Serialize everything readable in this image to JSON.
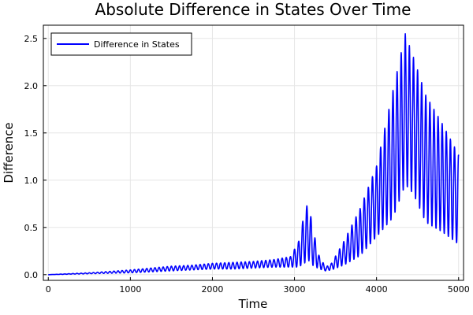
{
  "chart_data": {
    "type": "line",
    "title": "Absolute Difference in States Over Time",
    "xlabel": "Time",
    "ylabel": "Difference",
    "xlim": [
      -60,
      5060
    ],
    "ylim": [
      -0.06,
      2.64
    ],
    "xticks": [
      0,
      1000,
      2000,
      3000,
      4000,
      5000
    ],
    "xtick_labels": [
      "0",
      "1000",
      "2000",
      "3000",
      "4000",
      "5000"
    ],
    "yticks": [
      0.0,
      0.5,
      1.0,
      1.5,
      2.0,
      2.5
    ],
    "ytick_labels": [
      "0.0",
      "0.5",
      "1.0",
      "1.5",
      "2.0",
      "2.5"
    ],
    "grid": true,
    "legend_position": "top-left",
    "series": [
      {
        "name": "Difference in States",
        "color": "#0000ff",
        "oscillation_period": 50,
        "upper_envelope": [
          [
            0,
            0.0
          ],
          [
            250,
            0.01
          ],
          [
            500,
            0.02
          ],
          [
            750,
            0.035
          ],
          [
            1000,
            0.05
          ],
          [
            1250,
            0.07
          ],
          [
            1500,
            0.09
          ],
          [
            1750,
            0.1
          ],
          [
            2000,
            0.12
          ],
          [
            2250,
            0.13
          ],
          [
            2500,
            0.14
          ],
          [
            2750,
            0.16
          ],
          [
            2950,
            0.19
          ],
          [
            3050,
            0.35
          ],
          [
            3120,
            0.65
          ],
          [
            3170,
            0.78
          ],
          [
            3220,
            0.5
          ],
          [
            3300,
            0.2
          ],
          [
            3380,
            0.08
          ],
          [
            3450,
            0.12
          ],
          [
            3600,
            0.35
          ],
          [
            3800,
            0.7
          ],
          [
            4000,
            1.15
          ],
          [
            4200,
            1.95
          ],
          [
            4350,
            2.55
          ],
          [
            4450,
            2.3
          ],
          [
            4600,
            1.9
          ],
          [
            4800,
            1.6
          ],
          [
            5000,
            1.27
          ]
        ],
        "lower_envelope": [
          [
            0,
            0.0
          ],
          [
            250,
            0.005
          ],
          [
            500,
            0.01
          ],
          [
            750,
            0.015
          ],
          [
            1000,
            0.02
          ],
          [
            1250,
            0.03
          ],
          [
            1500,
            0.04
          ],
          [
            1750,
            0.05
          ],
          [
            2000,
            0.06
          ],
          [
            2250,
            0.06
          ],
          [
            2500,
            0.07
          ],
          [
            2750,
            0.08
          ],
          [
            2950,
            0.08
          ],
          [
            3050,
            0.08
          ],
          [
            3120,
            0.12
          ],
          [
            3170,
            0.15
          ],
          [
            3220,
            0.1
          ],
          [
            3300,
            0.06
          ],
          [
            3380,
            0.04
          ],
          [
            3450,
            0.05
          ],
          [
            3600,
            0.1
          ],
          [
            3800,
            0.2
          ],
          [
            4000,
            0.4
          ],
          [
            4200,
            0.6
          ],
          [
            4350,
            0.95
          ],
          [
            4450,
            0.85
          ],
          [
            4600,
            0.55
          ],
          [
            4800,
            0.45
          ],
          [
            5000,
            0.32
          ]
        ]
      }
    ]
  }
}
